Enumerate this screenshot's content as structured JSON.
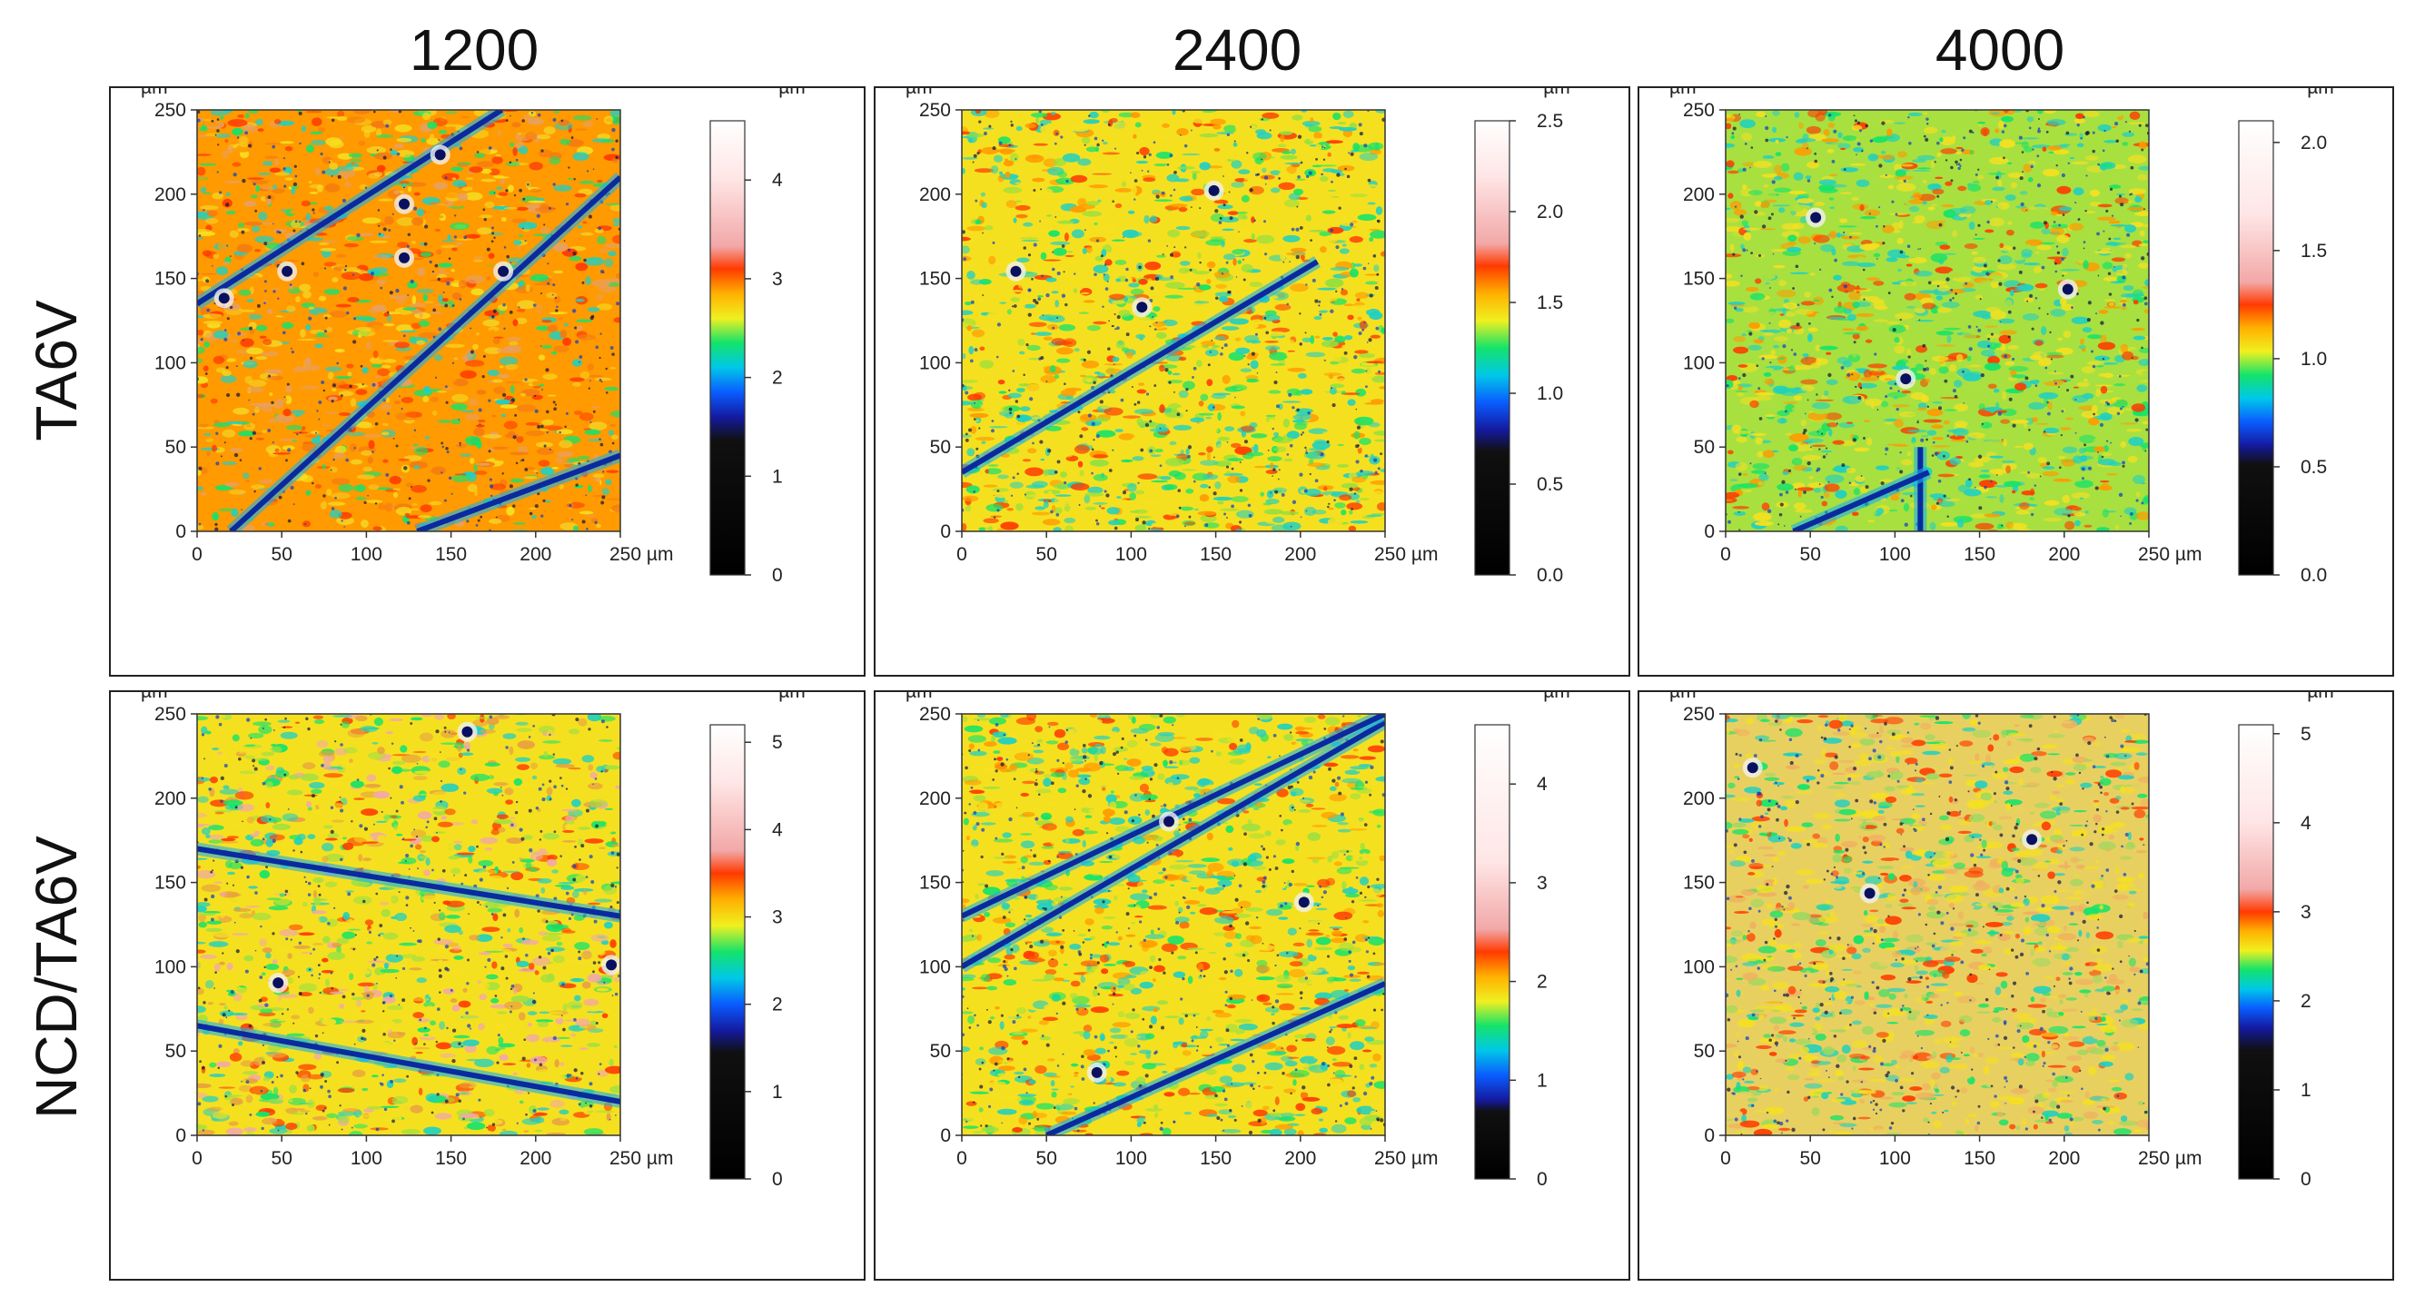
{
  "figure": {
    "column_headers": [
      "1200",
      "2400",
      "4000"
    ],
    "row_labels": [
      "TA6V",
      "NCD/TA6V"
    ]
  },
  "colormap": {
    "stops": [
      "#000000",
      "#101010",
      "#141aa0",
      "#0a5cff",
      "#00c8e8",
      "#14e36a",
      "#f0f020",
      "#ffb000",
      "#ff3a00",
      "#f2a8a8",
      "#ffe6e6",
      "#ffffff"
    ]
  },
  "chart_data": [
    {
      "type": "heatmap",
      "row": "TA6V",
      "column": "1200",
      "x_ticks": [
        "0",
        "50",
        "100",
        "150",
        "200",
        "250 µm"
      ],
      "y_ticks": [
        "0",
        "50",
        "100",
        "150",
        "200",
        "250"
      ],
      "y_unit": "µm",
      "xlim": [
        0,
        250
      ],
      "ylim": [
        0,
        250
      ],
      "colorbar": {
        "unit": "µm",
        "ticks": [
          0,
          1,
          2,
          3,
          4
        ],
        "tick_labels": [
          "0",
          "1",
          "2",
          "3",
          "4"
        ],
        "min": 0,
        "max": 4.6,
        "color_band": [
          1.6,
          3.1
        ]
      },
      "base_colors": [
        "#ff9a00",
        "#f57a10",
        "#f5d020",
        "#e8a060"
      ],
      "scratches": [
        [
          0,
          135,
          180,
          250
        ],
        [
          20,
          0,
          250,
          210
        ],
        [
          130,
          0,
          250,
          45
        ]
      ],
      "pits": [
        [
          100,
          180
        ],
        [
          230,
          165
        ],
        [
          230,
          105
        ],
        [
          270,
          50
        ],
        [
          30,
          210
        ],
        [
          340,
          180
        ]
      ]
    },
    {
      "type": "heatmap",
      "row": "TA6V",
      "column": "2400",
      "x_ticks": [
        "0",
        "50",
        "100",
        "150",
        "200",
        "250 µm"
      ],
      "y_ticks": [
        "0",
        "50",
        "100",
        "150",
        "200",
        "250"
      ],
      "y_unit": "µm",
      "xlim": [
        0,
        250
      ],
      "ylim": [
        0,
        250
      ],
      "colorbar": {
        "unit": "µm",
        "ticks": [
          0.0,
          0.5,
          1.0,
          1.5,
          2.0,
          2.5
        ],
        "tick_labels": [
          "0.0",
          "0.5",
          "1.0",
          "1.5",
          "2.0",
          "2.5"
        ],
        "min": 0,
        "max": 2.5,
        "color_band": [
          0.8,
          1.7
        ]
      },
      "base_colors": [
        "#f5e020",
        "#90e040",
        "#ff9a00",
        "#20d0c0"
      ],
      "scratches": [
        [
          0,
          35,
          210,
          160
        ]
      ],
      "pits": [
        [
          60,
          180
        ],
        [
          200,
          220
        ],
        [
          280,
          90
        ]
      ]
    },
    {
      "type": "heatmap",
      "row": "TA6V",
      "column": "4000",
      "x_ticks": [
        "0",
        "50",
        "100",
        "150",
        "200",
        "250 µm"
      ],
      "y_ticks": [
        "0",
        "50",
        "100",
        "150",
        "200",
        "250"
      ],
      "y_unit": "µm",
      "xlim": [
        0,
        250
      ],
      "ylim": [
        0,
        250
      ],
      "colorbar": {
        "unit": "µm",
        "ticks": [
          0.0,
          0.5,
          1.0,
          1.5,
          2.0
        ],
        "tick_labels": [
          "0.0",
          "0.5",
          "1.0",
          "1.5",
          "2.0"
        ],
        "min": 0,
        "max": 2.1,
        "color_band": [
          0.6,
          1.25
        ]
      },
      "base_colors": [
        "#a8e040",
        "#f5e020",
        "#20d0c0",
        "#ff9a00"
      ],
      "scratches": [
        [
          115,
          0,
          115,
          50
        ],
        [
          40,
          0,
          120,
          35
        ]
      ],
      "pits": [
        [
          100,
          120
        ],
        [
          380,
          200
        ],
        [
          200,
          300
        ]
      ]
    },
    {
      "type": "heatmap",
      "row": "NCD/TA6V",
      "column": "1200",
      "x_ticks": [
        "0",
        "50",
        "100",
        "150",
        "200",
        "250 µm"
      ],
      "y_ticks": [
        "0",
        "50",
        "100",
        "150",
        "200",
        "250"
      ],
      "y_unit": "µm",
      "xlim": [
        0,
        250
      ],
      "ylim": [
        0,
        250
      ],
      "colorbar": {
        "unit": "µm",
        "ticks": [
          0,
          1,
          2,
          3,
          4,
          5
        ],
        "tick_labels": [
          "0",
          "1",
          "2",
          "3",
          "4",
          "5"
        ],
        "min": 0,
        "max": 5.2,
        "color_band": [
          1.7,
          3.5
        ]
      },
      "base_colors": [
        "#f5e020",
        "#e8a040",
        "#a0e040",
        "#f2a8a8"
      ],
      "scratches": [
        [
          0,
          65,
          250,
          20
        ],
        [
          0,
          170,
          250,
          130
        ]
      ],
      "pits": [
        [
          90,
          300
        ],
        [
          300,
          20
        ],
        [
          460,
          280
        ]
      ]
    },
    {
      "type": "heatmap",
      "row": "NCD/TA6V",
      "column": "2400",
      "x_ticks": [
        "0",
        "50",
        "100",
        "150",
        "200",
        "250 µm"
      ],
      "y_ticks": [
        "0",
        "50",
        "100",
        "150",
        "200",
        "250"
      ],
      "y_unit": "µm",
      "xlim": [
        0,
        250
      ],
      "ylim": [
        0,
        250
      ],
      "colorbar": {
        "unit": "µm",
        "ticks": [
          0,
          1,
          2,
          3,
          4
        ],
        "tick_labels": [
          "0",
          "1",
          "2",
          "3",
          "4"
        ],
        "min": 0,
        "max": 4.6,
        "color_band": [
          0.8,
          2.3
        ]
      },
      "base_colors": [
        "#f5e020",
        "#20d0c0",
        "#a0e040",
        "#ff9a00"
      ],
      "scratches": [
        [
          0,
          100,
          250,
          245
        ],
        [
          50,
          0,
          250,
          90
        ],
        [
          0,
          130,
          250,
          250
        ]
      ],
      "pits": [
        [
          230,
          120
        ],
        [
          150,
          400
        ],
        [
          380,
          210
        ]
      ]
    },
    {
      "type": "heatmap",
      "row": "NCD/TA6V",
      "column": "4000",
      "x_ticks": [
        "0",
        "50",
        "100",
        "150",
        "200",
        "250 µm"
      ],
      "y_ticks": [
        "0",
        "50",
        "100",
        "150",
        "200",
        "250"
      ],
      "y_unit": "µm",
      "xlim": [
        0,
        250
      ],
      "ylim": [
        0,
        250
      ],
      "colorbar": {
        "unit": "µm",
        "ticks": [
          0,
          1,
          2,
          3,
          4,
          5
        ],
        "tick_labels": [
          "0",
          "1",
          "2",
          "3",
          "4",
          "5"
        ],
        "min": 0,
        "max": 5.1,
        "color_band": [
          1.7,
          3.0
        ]
      },
      "base_colors": [
        "#e8d060",
        "#f0b060",
        "#a0d860",
        "#f5e020"
      ],
      "scratches": [],
      "pits": [
        [
          30,
          60
        ],
        [
          160,
          200
        ],
        [
          340,
          140
        ]
      ]
    }
  ]
}
